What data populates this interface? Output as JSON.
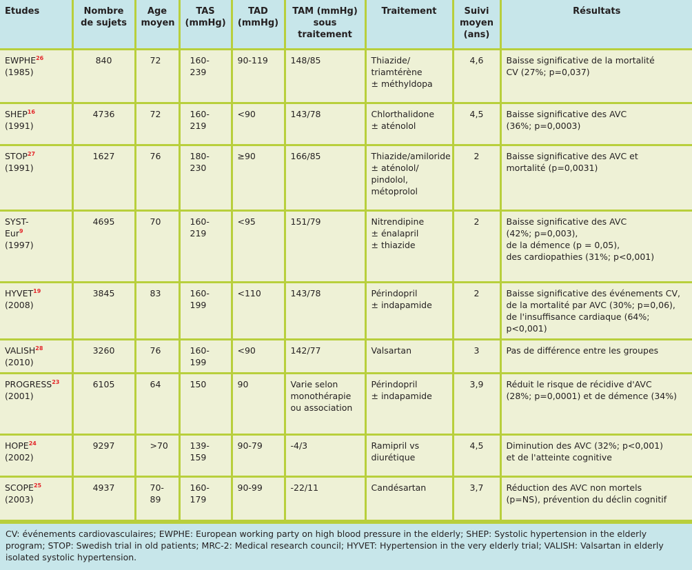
{
  "headers": [
    "Etudes",
    "Nombre\nde sujets",
    "Age\nmoyen",
    "TAS\n(mmHg)",
    "TAD\n(mmHg)",
    "TAM (mmHg)\nsous\ntraitement",
    "Traitement",
    "Suivi\nmoyen\n(ans)",
    "Résultats"
  ],
  "rows": [
    {
      "name": "EWPHE",
      "ref": "26",
      "year": "(1985)",
      "cells": [
        "840",
        "72",
        "160-239",
        "90-119",
        "148/85",
        "Thiazide/\ntriamtérène\n± méthyldopa",
        "4,6",
        "Baisse significative de la mortalité\nCV (27%; p=0,037)"
      ]
    },
    {
      "name": "SHEP",
      "ref": "16",
      "year": "(1991)",
      "cells": [
        "4736",
        "72",
        "160-219",
        "<90",
        "143/78",
        "Chlorthalidone\n± aténolol",
        "4,5",
        "Baisse significative des AVC\n(36%; p=0,0003)"
      ]
    },
    {
      "name": "STOP",
      "ref": "27",
      "year": "(1991)",
      "cells": [
        "1627",
        "76",
        "180-230",
        "≥90",
        "166/85",
        "Thiazide/amiloride\n± aténolol/\npindolol,\nmétoprolol",
        "2",
        "Baisse significative des AVC et\nmortalité (p=0,0031)"
      ]
    },
    {
      "name": "SYST-\nEur",
      "ref": "9",
      "year": "(1997)",
      "cells": [
        "4695",
        "70",
        "160-219",
        "<95",
        "151/79",
        "Nitrendipine\n± énalapril\n± thiazide",
        "2",
        "Baisse significative des AVC\n(42%; p=0,003),\nde la démence (p = 0,05),\ndes cardiopathies (31%; p<0,001)"
      ]
    },
    {
      "name": "HYVET",
      "ref": "19",
      "year": "(2008)",
      "cells": [
        "3845",
        "83",
        "160-199",
        "<110",
        "143/78",
        "Périndopril\n± indapamide",
        "2",
        "Baisse significative des événements CV,\nde la mortalité par AVC (30%; p=0,06),\nde l'insuffisance cardiaque (64%; p<0,001)"
      ]
    },
    {
      "name": "VALISH",
      "ref": "28",
      "year": "(2010)",
      "cells": [
        "3260",
        "76",
        "160-199",
        "<90",
        "142/77",
        "Valsartan",
        "3",
        "Pas de différence entre les groupes"
      ]
    },
    {
      "name": "PROGRESS",
      "ref": "23",
      "year": "(2001)",
      "cells": [
        "6105",
        "64",
        "150",
        "90",
        "Varie selon\nmonothérapie\nou association",
        "Périndopril\n± indapamide",
        "3,9",
        "Réduit le risque de récidive d'AVC\n(28%; p=0,0001) et de démence (34%)"
      ]
    },
    {
      "name": "HOPE",
      "ref": "24",
      "year": "(2002)",
      "cells": [
        "9297",
        ">70",
        "139-159",
        "90-79",
        "-4/3",
        "Ramipril vs\ndiurétique",
        "4,5",
        "Diminution des AVC (32%; p<0,001)\net de l'atteinte cognitive"
      ]
    },
    {
      "name": "SCOPE",
      "ref": "25",
      "year": "(2003)",
      "cells": [
        "4937",
        "70-89",
        "160-179",
        "90-99",
        "-22/11",
        "Candésartan",
        "3,7",
        "Réduction des AVC non mortels\n(p=NS), prévention du déclin cognitif"
      ]
    }
  ],
  "footnote": "CV: événements cardiovasculaires; EWPHE: European working party on high blood pressure in the elderly; SHEP: Systolic hypertension in the elderly program; STOP: Swedish trial in old patients; MRC-2: Medical research council; HYVET: Hypertension in the very elderly trial; VALISH: Valsartan in elderly isolated systolic hypertension."
}
